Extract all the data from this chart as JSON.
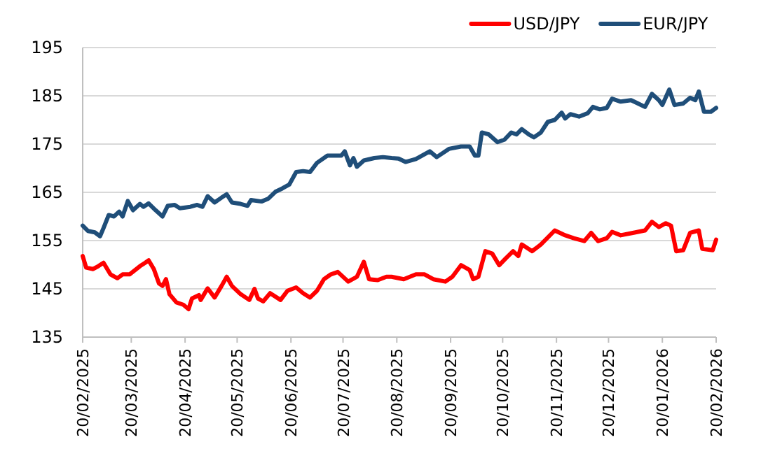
{
  "chart_data": {
    "type": "line",
    "xlim": [
      "2025-02-20",
      "2026-02-20"
    ],
    "xticks": [
      {
        "value": "2025-02-20",
        "label": "20/02/2025"
      },
      {
        "value": "2025-03-20",
        "label": "20/03/2025"
      },
      {
        "value": "2025-04-20",
        "label": "20/04/2025"
      },
      {
        "value": "2025-05-20",
        "label": "20/05/2025"
      },
      {
        "value": "2025-06-20",
        "label": "20/06/2025"
      },
      {
        "value": "2025-07-20",
        "label": "20/07/2025"
      },
      {
        "value": "2025-08-20",
        "label": "20/08/2025"
      },
      {
        "value": "2025-09-20",
        "label": "20/09/2025"
      },
      {
        "value": "2025-10-20",
        "label": "20/10/2025"
      },
      {
        "value": "2025-11-20",
        "label": "20/11/2025"
      },
      {
        "value": "2025-12-20",
        "label": "20/12/2025"
      },
      {
        "value": "2026-01-20",
        "label": "20/01/2026"
      },
      {
        "value": "2026-02-20",
        "label": "20/02/2026"
      }
    ],
    "ylim": [
      135,
      195
    ],
    "yticks": [
      135,
      145,
      155,
      165,
      175,
      185,
      195
    ],
    "grid": "y",
    "legend": "top right",
    "marker": "none",
    "line_style": "solid",
    "series": [
      {
        "name": "USD/JPY",
        "color": "#ff0000",
        "x": [
          "2025-02-20",
          "2025-02-22",
          "2025-02-26",
          "2025-03-01",
          "2025-03-04",
          "2025-03-08",
          "2025-03-12",
          "2025-03-15",
          "2025-03-19",
          "2025-03-25",
          "2025-03-28",
          "2025-03-30",
          "2025-04-02",
          "2025-04-05",
          "2025-04-07",
          "2025-04-09",
          "2025-04-11",
          "2025-04-15",
          "2025-04-19",
          "2025-04-22",
          "2025-04-24",
          "2025-04-28",
          "2025-04-29",
          "2025-05-03",
          "2025-05-07",
          "2025-05-11",
          "2025-05-14",
          "2025-05-17",
          "2025-05-22",
          "2025-05-27",
          "2025-05-30",
          "2025-06-01",
          "2025-06-04",
          "2025-06-08",
          "2025-06-14",
          "2025-06-18",
          "2025-06-23",
          "2025-06-27",
          "2025-07-01",
          "2025-07-05",
          "2025-07-09",
          "2025-07-13",
          "2025-07-17",
          "2025-07-23",
          "2025-07-28",
          "2025-08-01",
          "2025-08-04",
          "2025-08-09",
          "2025-08-14",
          "2025-08-17",
          "2025-08-24",
          "2025-08-31",
          "2025-09-05",
          "2025-09-10",
          "2025-09-17",
          "2025-09-21",
          "2025-09-26",
          "2025-10-01",
          "2025-10-03",
          "2025-10-06",
          "2025-10-10",
          "2025-10-14",
          "2025-10-18",
          "2025-10-22",
          "2025-10-26",
          "2025-10-29",
          "2025-10-31",
          "2025-11-06",
          "2025-11-11",
          "2025-11-19",
          "2025-11-25",
          "2025-11-30",
          "2025-12-06",
          "2025-12-10",
          "2025-12-14",
          "2025-12-19",
          "2025-12-22",
          "2025-12-27",
          "2026-01-03",
          "2026-01-10",
          "2026-01-14",
          "2026-01-18",
          "2026-01-22",
          "2026-01-25",
          "2026-01-28",
          "2026-02-01",
          "2026-02-05",
          "2026-02-10",
          "2026-02-12",
          "2026-02-18",
          "2026-02-20"
        ],
        "values": [
          151.8,
          149.4,
          149.1,
          149.7,
          150.4,
          148,
          147.2,
          148,
          148,
          149.7,
          150.4,
          150.9,
          149.1,
          146.1,
          145.6,
          147,
          143.9,
          142.2,
          141.7,
          140.8,
          143,
          143.7,
          142.7,
          145.1,
          143.2,
          145.6,
          147.5,
          145.6,
          143.9,
          142.7,
          145,
          143,
          142.4,
          144.1,
          142.7,
          144.6,
          145.3,
          144.1,
          143.2,
          144.6,
          147,
          148,
          148.5,
          146.5,
          147.5,
          150.6,
          147,
          146.8,
          147.5,
          147.5,
          147,
          148,
          148,
          147,
          146.5,
          147.5,
          149.9,
          148.9,
          147,
          147.5,
          152.8,
          152.3,
          149.9,
          151.4,
          152.8,
          151.8,
          154.2,
          152.8,
          154.2,
          157.1,
          156.1,
          155.5,
          154.9,
          156.6,
          154.9,
          155.5,
          156.8,
          156.1,
          156.6,
          157.1,
          158.9,
          157.8,
          158.6,
          158.1,
          152.8,
          153,
          156.6,
          157.1,
          153.3,
          153,
          155.2
        ]
      },
      {
        "name": "EUR/JPY",
        "color": "#1f4e79",
        "x": [
          "2025-02-20",
          "2025-02-23",
          "2025-02-27",
          "2025-03-02",
          "2025-03-04",
          "2025-03-07",
          "2025-03-10",
          "2025-03-13",
          "2025-03-15",
          "2025-03-18",
          "2025-03-21",
          "2025-03-25",
          "2025-03-27",
          "2025-03-30",
          "2025-04-03",
          "2025-04-07",
          "2025-04-10",
          "2025-04-14",
          "2025-04-17",
          "2025-04-23",
          "2025-04-27",
          "2025-04-30",
          "2025-05-03",
          "2025-05-07",
          "2025-05-11",
          "2025-05-14",
          "2025-05-17",
          "2025-05-22",
          "2025-05-26",
          "2025-05-28",
          "2025-06-03",
          "2025-06-07",
          "2025-06-11",
          "2025-06-15",
          "2025-06-19",
          "2025-06-23",
          "2025-06-27",
          "2025-07-01",
          "2025-07-05",
          "2025-07-11",
          "2025-07-19",
          "2025-07-21",
          "2025-07-24",
          "2025-07-26",
          "2025-07-28",
          "2025-08-01",
          "2025-08-07",
          "2025-08-12",
          "2025-08-17",
          "2025-08-21",
          "2025-08-25",
          "2025-08-31",
          "2025-09-08",
          "2025-09-12",
          "2025-09-19",
          "2025-09-26",
          "2025-10-01",
          "2025-10-04",
          "2025-10-06",
          "2025-10-08",
          "2025-10-12",
          "2025-10-17",
          "2025-10-21",
          "2025-10-25",
          "2025-10-28",
          "2025-10-31",
          "2025-11-04",
          "2025-11-07",
          "2025-11-11",
          "2025-11-15",
          "2025-11-19",
          "2025-11-23",
          "2025-11-25",
          "2025-11-28",
          "2025-12-03",
          "2025-12-08",
          "2025-12-11",
          "2025-12-15",
          "2025-12-19",
          "2025-12-22",
          "2025-12-27",
          "2026-01-02",
          "2026-01-06",
          "2026-01-10",
          "2026-01-14",
          "2026-01-18",
          "2026-01-20",
          "2026-01-24",
          "2026-01-27",
          "2026-02-01",
          "2026-02-05",
          "2026-02-08",
          "2026-02-10",
          "2026-02-13",
          "2026-02-17",
          "2026-02-20"
        ],
        "values": [
          158.1,
          157,
          156.7,
          155.9,
          157.6,
          160.3,
          160,
          161,
          160,
          163.2,
          161.3,
          162.6,
          162,
          162.7,
          161.3,
          160,
          162.2,
          162.4,
          161.7,
          162,
          162.4,
          162,
          164.2,
          162.9,
          163.9,
          164.6,
          162.9,
          162.6,
          162.2,
          163.4,
          163.1,
          163.7,
          165.1,
          165.8,
          166.6,
          169.2,
          169.4,
          169.2,
          171.1,
          172.6,
          172.6,
          173.5,
          170.6,
          172.1,
          170.3,
          171.6,
          172.1,
          172.3,
          172.1,
          172,
          171.3,
          171.9,
          173.5,
          172.3,
          174,
          174.5,
          174.5,
          172.6,
          172.6,
          177.4,
          177,
          175.4,
          175.9,
          177.4,
          177,
          178.1,
          177,
          176.4,
          177.4,
          179.6,
          180,
          181.5,
          180.3,
          181.2,
          180.7,
          181.4,
          182.7,
          182.2,
          182.5,
          184.4,
          183.8,
          184.1,
          183.4,
          182.7,
          185.4,
          184.1,
          183.1,
          186.3,
          183.1,
          183.4,
          184.6,
          184.1,
          185.9,
          181.7,
          181.7,
          182.5
        ]
      }
    ]
  }
}
